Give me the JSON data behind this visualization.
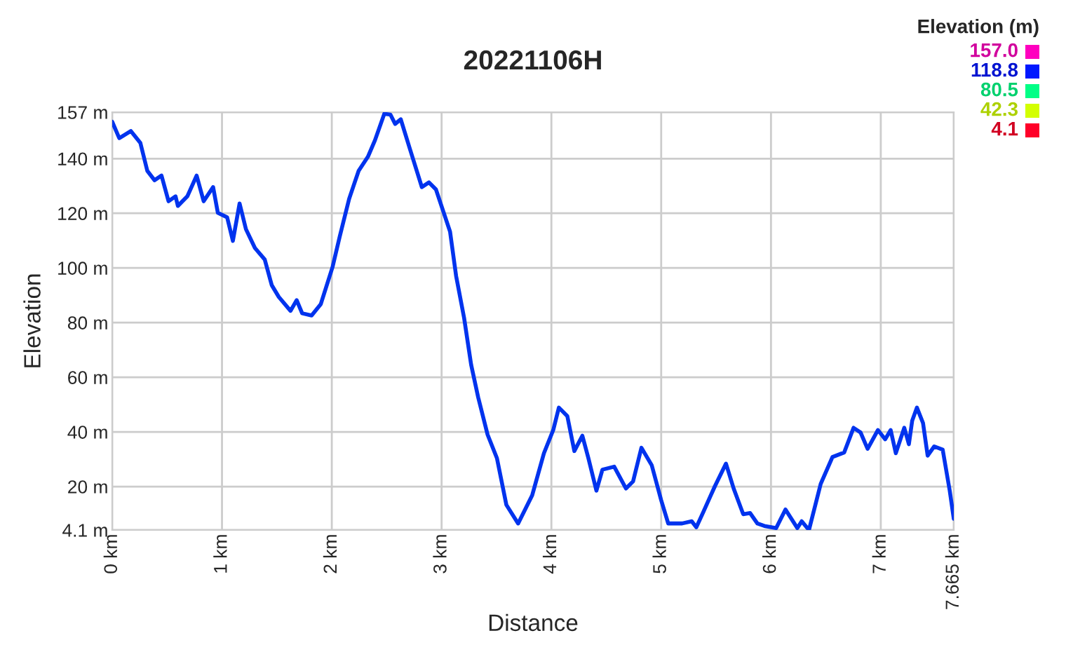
{
  "chart_data": {
    "type": "line",
    "title": "20221106H",
    "xlabel": "Distance",
    "ylabel": "Elevation",
    "clabel": "Elevation (m)",
    "x": [
      0.0,
      0.064,
      0.17,
      0.256,
      0.32,
      0.385,
      0.449,
      0.513,
      0.577,
      0.598,
      0.684,
      0.769,
      0.833,
      0.919,
      0.962,
      1.047,
      1.099,
      1.16,
      1.218,
      1.3,
      1.389,
      1.453,
      1.517,
      1.624,
      1.68,
      1.73,
      1.816,
      1.9,
      2.008,
      2.073,
      2.158,
      2.244,
      2.329,
      2.393,
      2.478,
      2.534,
      2.577,
      2.628,
      2.714,
      2.82,
      2.885,
      2.949,
      3.013,
      3.077,
      3.132,
      3.205,
      3.269,
      3.333,
      3.419,
      3.504,
      3.59,
      3.697,
      3.825,
      3.932,
      4.017,
      4.068,
      4.145,
      4.209,
      4.282,
      4.337,
      4.41,
      4.465,
      4.572,
      4.679,
      4.744,
      4.82,
      4.914,
      5.0,
      5.064,
      5.19,
      5.278,
      5.32,
      5.385,
      5.49,
      5.59,
      5.66,
      5.747,
      5.81,
      5.876,
      5.94,
      6.047,
      6.132,
      6.24,
      6.28,
      6.346,
      6.453,
      6.56,
      6.667,
      6.752,
      6.816,
      6.88,
      6.974,
      7.04,
      7.09,
      7.137,
      7.214,
      7.256,
      7.286,
      7.329,
      7.385,
      7.427,
      7.487,
      7.564,
      7.628,
      7.665
    ],
    "values": [
      153.5,
      147.5,
      150.1,
      145.8,
      135.5,
      132.1,
      133.8,
      124.4,
      126.2,
      122.7,
      126.2,
      133.8,
      124.4,
      129.6,
      120.2,
      118.5,
      109.9,
      123.6,
      114.2,
      107.3,
      103.1,
      93.7,
      89.4,
      84.3,
      88.2,
      83.4,
      82.6,
      86.8,
      100.5,
      111.6,
      125.3,
      135.5,
      140.7,
      146.7,
      156.4,
      156.1,
      152.7,
      154.4,
      143.2,
      129.6,
      131.3,
      128.7,
      121.0,
      113.3,
      97.1,
      81.7,
      64.6,
      52.7,
      39.0,
      30.4,
      13.3,
      6.5,
      16.8,
      32.2,
      40.7,
      48.9,
      45.8,
      33.0,
      38.6,
      30.4,
      18.5,
      26.2,
      27.3,
      19.3,
      21.9,
      34.2,
      27.8,
      15.0,
      6.5,
      6.5,
      7.3,
      5.1,
      10.8,
      20.2,
      28.4,
      19.3,
      9.9,
      10.3,
      6.5,
      5.6,
      4.8,
      11.6,
      4.8,
      7.3,
      4.1,
      21.0,
      30.8,
      32.5,
      41.5,
      39.8,
      33.8,
      40.7,
      37.3,
      40.7,
      32.2,
      41.5,
      35.5,
      44.1,
      48.9,
      43.2,
      31.3,
      34.7,
      33.5,
      18.5,
      8.2
    ],
    "color": "#0033ee",
    "clim": [
      4.1,
      157.0
    ],
    "cticks": [
      {
        "value": 157.0,
        "label": "157.0"
      },
      {
        "value": 118.8,
        "label": "118.8"
      },
      {
        "value": 80.5,
        "label": "80.5"
      },
      {
        "value": 42.3,
        "label": "42.3"
      },
      {
        "value": 4.1,
        "label": "4.1"
      }
    ],
    "xlim": [
      0,
      7.665
    ],
    "xticks": [
      {
        "value": 0,
        "label": "0 km"
      },
      {
        "value": 1,
        "label": "1 km"
      },
      {
        "value": 2,
        "label": "2 km"
      },
      {
        "value": 3,
        "label": "3 km"
      },
      {
        "value": 4,
        "label": "4 km"
      },
      {
        "value": 5,
        "label": "5 km"
      },
      {
        "value": 6,
        "label": "6 km"
      },
      {
        "value": 7,
        "label": "7 km"
      },
      {
        "value": 7.665,
        "label": "7.665 km"
      }
    ],
    "ylim": [
      4.1,
      157
    ],
    "yticks": [
      {
        "value": 4.1,
        "label": "4.1 m"
      },
      {
        "value": 20,
        "label": "20 m"
      },
      {
        "value": 40,
        "label": "40 m"
      },
      {
        "value": 60,
        "label": "60 m"
      },
      {
        "value": 80,
        "label": "80 m"
      },
      {
        "value": 100,
        "label": "100 m"
      },
      {
        "value": 120,
        "label": "120 m"
      },
      {
        "value": 140,
        "label": "140 m"
      },
      {
        "value": 157,
        "label": "157 m"
      }
    ],
    "grid": true
  }
}
